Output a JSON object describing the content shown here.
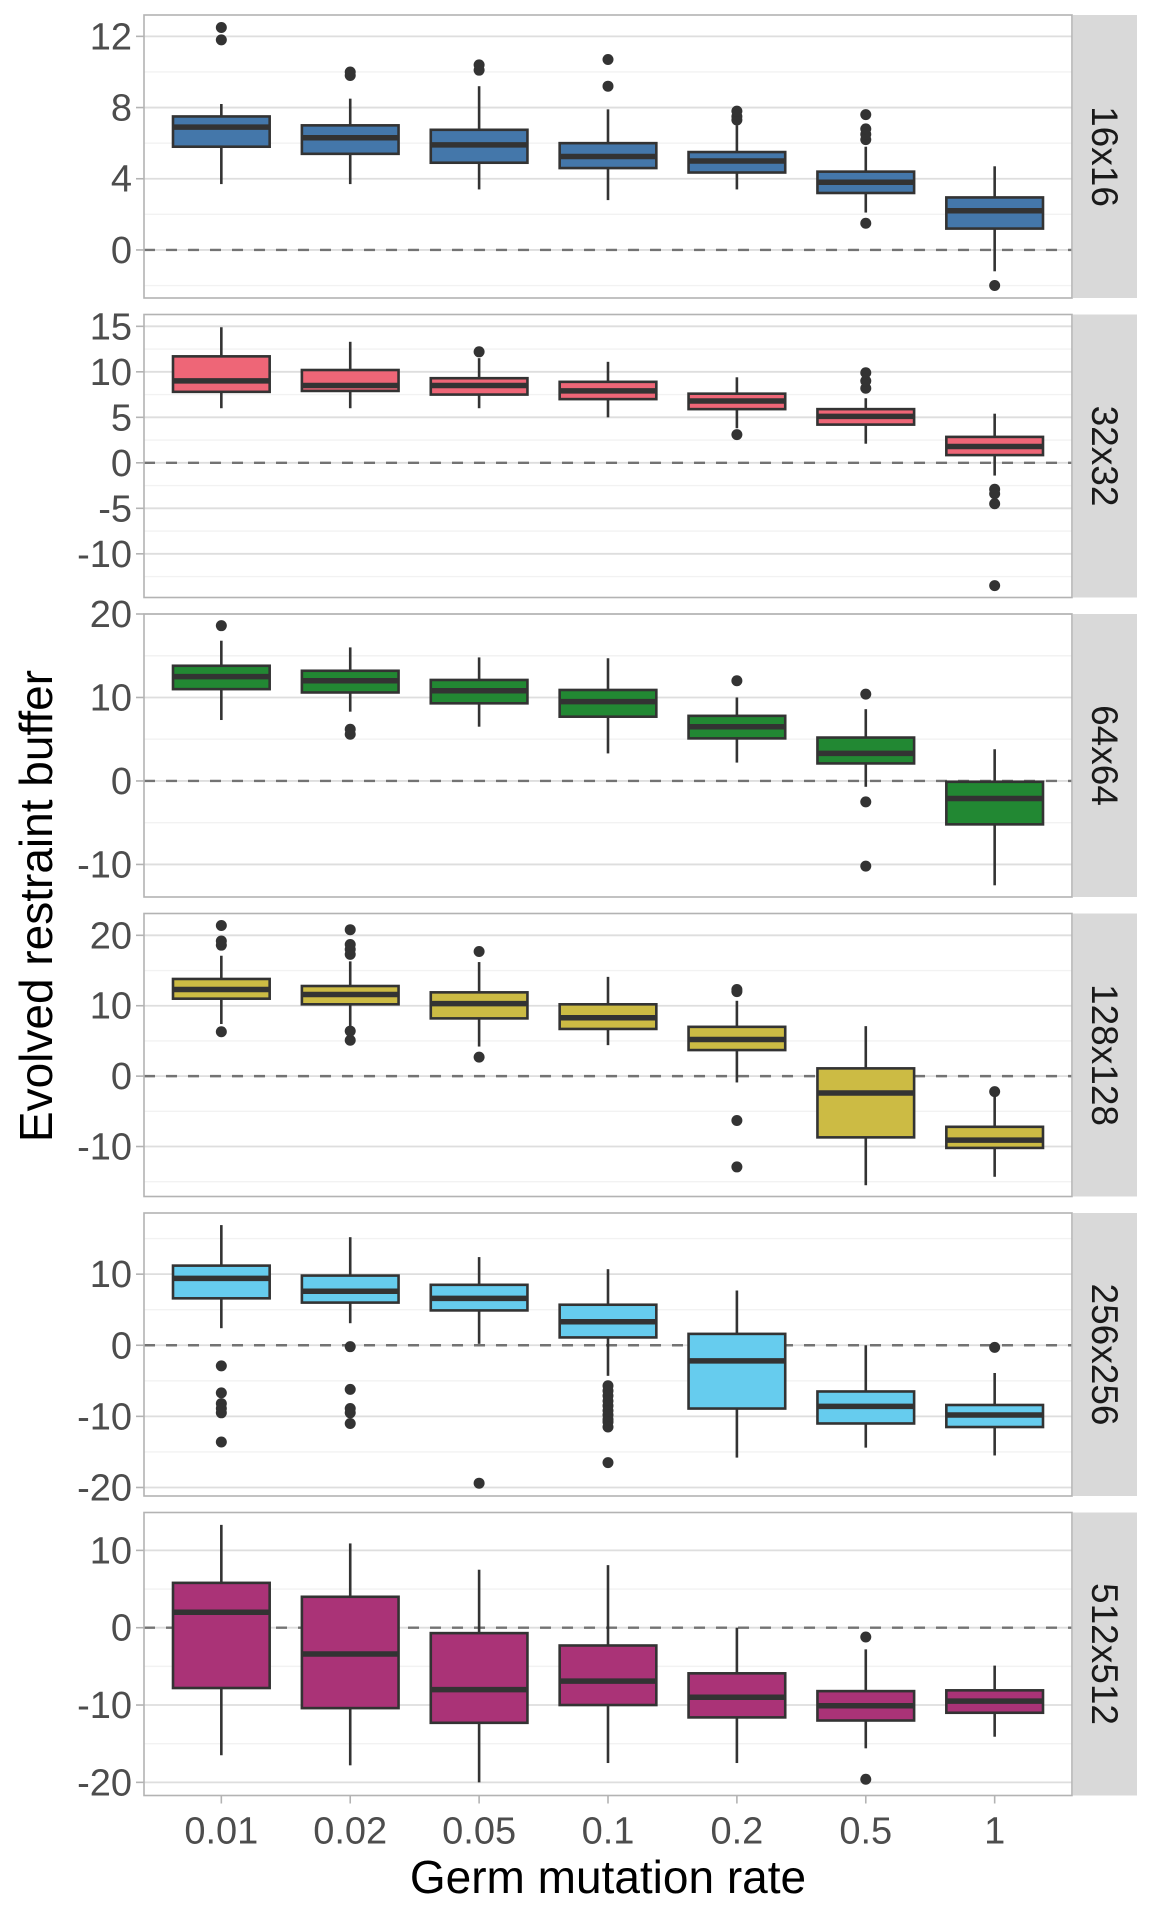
{
  "chart_data": {
    "type": "boxplot",
    "title": "",
    "xlabel": "Germ mutation rate",
    "ylabel": "Evolved restraint buffer",
    "categories": [
      "0.01",
      "0.02",
      "0.05",
      "0.1",
      "0.2",
      "0.5",
      "1"
    ],
    "reference_line": {
      "y": 0,
      "style": "dashed"
    },
    "grid": true,
    "facet_layout": "rows",
    "facets": [
      {
        "label": "16x16",
        "color": "#4477AA",
        "ylim": [
          -2.7,
          13.2
        ],
        "yticks": [
          0,
          4,
          8,
          12
        ],
        "yticks_minor": [
          -2,
          2,
          6,
          10
        ],
        "boxes": [
          {
            "x": "0.01",
            "lower_whisker": 3.7,
            "q1": 5.8,
            "median": 6.9,
            "q3": 7.5,
            "upper_whisker": 8.2,
            "outliers": [
              11.8,
              12.5
            ]
          },
          {
            "x": "0.02",
            "lower_whisker": 3.7,
            "q1": 5.4,
            "median": 6.3,
            "q3": 7.0,
            "upper_whisker": 8.5,
            "outliers": [
              9.8,
              10.0
            ]
          },
          {
            "x": "0.05",
            "lower_whisker": 3.4,
            "q1": 4.9,
            "median": 5.9,
            "q3": 6.75,
            "upper_whisker": 9.2,
            "outliers": [
              10.1,
              10.4
            ]
          },
          {
            "x": "0.1",
            "lower_whisker": 2.8,
            "q1": 4.6,
            "median": 5.25,
            "q3": 6.0,
            "upper_whisker": 7.9,
            "outliers": [
              9.2,
              10.7
            ]
          },
          {
            "x": "0.2",
            "lower_whisker": 3.4,
            "q1": 4.35,
            "median": 5.0,
            "q3": 5.5,
            "upper_whisker": 7.0,
            "outliers": [
              7.3,
              7.5,
              7.8
            ]
          },
          {
            "x": "0.5",
            "lower_whisker": 2.1,
            "q1": 3.2,
            "median": 3.8,
            "q3": 4.4,
            "upper_whisker": 5.8,
            "outliers": [
              1.5,
              6.2,
              6.5,
              6.8,
              7.6
            ]
          },
          {
            "x": "1",
            "lower_whisker": -1.2,
            "q1": 1.2,
            "median": 2.2,
            "q3": 2.95,
            "upper_whisker": 4.7,
            "outliers": [
              -2.0
            ]
          }
        ]
      },
      {
        "label": "32x32",
        "color": "#EE6677",
        "ylim": [
          -14.8,
          16.3
        ],
        "yticks": [
          -10,
          -5,
          0,
          5,
          10,
          15
        ],
        "yticks_minor": [
          -12.5,
          -7.5,
          -2.5,
          2.5,
          7.5,
          12.5
        ],
        "boxes": [
          {
            "x": "0.01",
            "lower_whisker": 6.0,
            "q1": 7.8,
            "median": 9.0,
            "q3": 11.7,
            "upper_whisker": 14.9,
            "outliers": []
          },
          {
            "x": "0.02",
            "lower_whisker": 6.0,
            "q1": 7.9,
            "median": 8.5,
            "q3": 10.2,
            "upper_whisker": 13.3,
            "outliers": []
          },
          {
            "x": "0.05",
            "lower_whisker": 6.0,
            "q1": 7.5,
            "median": 8.5,
            "q3": 9.3,
            "upper_whisker": 11.5,
            "outliers": [
              12.2
            ]
          },
          {
            "x": "0.1",
            "lower_whisker": 5.0,
            "q1": 7.0,
            "median": 7.9,
            "q3": 8.9,
            "upper_whisker": 11.1,
            "outliers": []
          },
          {
            "x": "0.2",
            "lower_whisker": 3.8,
            "q1": 5.9,
            "median": 6.8,
            "q3": 7.6,
            "upper_whisker": 9.4,
            "outliers": [
              3.1
            ]
          },
          {
            "x": "0.5",
            "lower_whisker": 2.1,
            "q1": 4.2,
            "median": 5.1,
            "q3": 5.9,
            "upper_whisker": 7.1,
            "outliers": [
              8.2,
              9.0,
              9.9
            ]
          },
          {
            "x": "1",
            "lower_whisker": -1.4,
            "q1": 0.85,
            "median": 1.8,
            "q3": 2.85,
            "upper_whisker": 5.4,
            "outliers": [
              -2.9,
              -3.4,
              -4.5,
              -13.5
            ]
          }
        ]
      },
      {
        "label": "64x64",
        "color": "#228833",
        "ylim": [
          -13.9,
          20.0
        ],
        "yticks": [
          -10,
          0,
          10,
          20
        ],
        "yticks_minor": [
          -5,
          5,
          15
        ],
        "boxes": [
          {
            "x": "0.01",
            "lower_whisker": 7.3,
            "q1": 11.0,
            "median": 12.5,
            "q3": 13.8,
            "upper_whisker": 16.8,
            "outliers": [
              18.6
            ]
          },
          {
            "x": "0.02",
            "lower_whisker": 8.3,
            "q1": 10.6,
            "median": 12.0,
            "q3": 13.2,
            "upper_whisker": 16.0,
            "outliers": [
              5.6,
              6.2
            ]
          },
          {
            "x": "0.05",
            "lower_whisker": 6.5,
            "q1": 9.3,
            "median": 10.8,
            "q3": 12.1,
            "upper_whisker": 14.8,
            "outliers": []
          },
          {
            "x": "0.1",
            "lower_whisker": 3.3,
            "q1": 7.7,
            "median": 9.5,
            "q3": 10.9,
            "upper_whisker": 14.7,
            "outliers": []
          },
          {
            "x": "0.2",
            "lower_whisker": 2.2,
            "q1": 5.1,
            "median": 6.5,
            "q3": 7.8,
            "upper_whisker": 10.0,
            "outliers": [
              12.0
            ]
          },
          {
            "x": "0.5",
            "lower_whisker": -0.7,
            "q1": 2.1,
            "median": 3.3,
            "q3": 5.2,
            "upper_whisker": 8.6,
            "outliers": [
              10.4,
              -2.5,
              -10.2
            ]
          },
          {
            "x": "1",
            "lower_whisker": -12.5,
            "q1": -5.2,
            "median": -2.1,
            "q3": -0.1,
            "upper_whisker": 3.8,
            "outliers": []
          }
        ]
      },
      {
        "label": "128x128",
        "color": "#CCBB44",
        "ylim": [
          -17.1,
          23.1
        ],
        "yticks": [
          -10,
          0,
          10,
          20
        ],
        "yticks_minor": [
          -15,
          -5,
          5,
          15
        ],
        "boxes": [
          {
            "x": "0.01",
            "lower_whisker": 7.4,
            "q1": 11.0,
            "median": 12.3,
            "q3": 13.8,
            "upper_whisker": 17.1,
            "outliers": [
              6.3,
              18.6,
              19.2,
              21.4
            ]
          },
          {
            "x": "0.02",
            "lower_whisker": 7.1,
            "q1": 10.2,
            "median": 11.6,
            "q3": 12.8,
            "upper_whisker": 16.3,
            "outliers": [
              5.1,
              6.4,
              17.3,
              18.0,
              18.7,
              20.8
            ]
          },
          {
            "x": "0.05",
            "lower_whisker": 4.2,
            "q1": 8.2,
            "median": 10.3,
            "q3": 11.9,
            "upper_whisker": 16.2,
            "outliers": [
              2.7,
              17.7
            ]
          },
          {
            "x": "0.1",
            "lower_whisker": 4.4,
            "q1": 6.7,
            "median": 8.3,
            "q3": 10.2,
            "upper_whisker": 14.1,
            "outliers": []
          },
          {
            "x": "0.2",
            "lower_whisker": -0.9,
            "q1": 3.7,
            "median": 5.2,
            "q3": 7.0,
            "upper_whisker": 10.7,
            "outliers": [
              12.0,
              12.3,
              -6.3,
              -12.9
            ]
          },
          {
            "x": "0.5",
            "lower_whisker": -15.5,
            "q1": -8.7,
            "median": -2.4,
            "q3": 1.1,
            "upper_whisker": 7.1,
            "outliers": []
          },
          {
            "x": "1",
            "lower_whisker": -14.3,
            "q1": -10.2,
            "median": -9.1,
            "q3": -7.2,
            "upper_whisker": -2.8,
            "outliers": [
              -2.2
            ]
          }
        ]
      },
      {
        "label": "256x256",
        "color": "#66CCEE",
        "ylim": [
          -21.2,
          18.6
        ],
        "yticks": [
          -20,
          -10,
          0,
          10
        ],
        "yticks_minor": [
          -15,
          -5,
          5,
          15
        ],
        "boxes": [
          {
            "x": "0.01",
            "lower_whisker": 2.4,
            "q1": 6.6,
            "median": 9.4,
            "q3": 11.2,
            "upper_whisker": 16.9,
            "outliers": [
              -2.9,
              -6.7,
              -8.2,
              -8.9,
              -9.5,
              -13.6
            ]
          },
          {
            "x": "0.02",
            "lower_whisker": 3.1,
            "q1": 6.0,
            "median": 7.6,
            "q3": 9.8,
            "upper_whisker": 15.2,
            "outliers": [
              -0.2,
              -6.2,
              -8.9,
              -9.5,
              -11.0
            ]
          },
          {
            "x": "0.05",
            "lower_whisker": 0.2,
            "q1": 4.9,
            "median": 6.6,
            "q3": 8.5,
            "upper_whisker": 12.4,
            "outliers": [
              -19.4
            ]
          },
          {
            "x": "0.1",
            "lower_whisker": -4.3,
            "q1": 1.1,
            "median": 3.3,
            "q3": 5.7,
            "upper_whisker": 10.7,
            "outliers": [
              -5.7,
              -6.4,
              -7.1,
              -7.8,
              -8.5,
              -9.2,
              -9.8,
              -10.4,
              -10.8,
              -11.5,
              -16.5
            ]
          },
          {
            "x": "0.2",
            "lower_whisker": -15.8,
            "q1": -8.9,
            "median": -2.2,
            "q3": 1.6,
            "upper_whisker": 7.7,
            "outliers": []
          },
          {
            "x": "0.5",
            "lower_whisker": -14.4,
            "q1": -11.0,
            "median": -8.6,
            "q3": -6.5,
            "upper_whisker": 0.0,
            "outliers": []
          },
          {
            "x": "1",
            "lower_whisker": -15.5,
            "q1": -11.5,
            "median": -9.8,
            "q3": -8.4,
            "upper_whisker": -3.9,
            "outliers": [
              -0.3
            ]
          }
        ]
      },
      {
        "label": "512x512",
        "color": "#AA3377",
        "ylim": [
          -21.7,
          14.9
        ],
        "yticks": [
          -20,
          -10,
          0,
          10
        ],
        "yticks_minor": [
          -15,
          -5,
          5
        ],
        "boxes": [
          {
            "x": "0.01",
            "lower_whisker": -16.5,
            "q1": -7.8,
            "median": 2.0,
            "q3": 5.8,
            "upper_whisker": 13.3,
            "outliers": []
          },
          {
            "x": "0.02",
            "lower_whisker": -17.8,
            "q1": -10.4,
            "median": -3.4,
            "q3": 4.0,
            "upper_whisker": 10.9,
            "outliers": []
          },
          {
            "x": "0.05",
            "lower_whisker": -20.0,
            "q1": -12.3,
            "median": -8.0,
            "q3": -0.7,
            "upper_whisker": 7.5,
            "outliers": []
          },
          {
            "x": "0.1",
            "lower_whisker": -17.5,
            "q1": -10.0,
            "median": -6.9,
            "q3": -2.3,
            "upper_whisker": 8.1,
            "outliers": []
          },
          {
            "x": "0.2",
            "lower_whisker": -17.5,
            "q1": -11.6,
            "median": -9.0,
            "q3": -5.9,
            "upper_whisker": 0.0,
            "outliers": []
          },
          {
            "x": "0.5",
            "lower_whisker": -15.6,
            "q1": -12.0,
            "median": -10.1,
            "q3": -8.2,
            "upper_whisker": -2.8,
            "outliers": [
              -1.2,
              -19.6
            ]
          },
          {
            "x": "1",
            "lower_whisker": -14.1,
            "q1": -11.0,
            "median": -9.5,
            "q3": -8.1,
            "upper_whisker": -4.9,
            "outliers": []
          }
        ]
      }
    ]
  }
}
